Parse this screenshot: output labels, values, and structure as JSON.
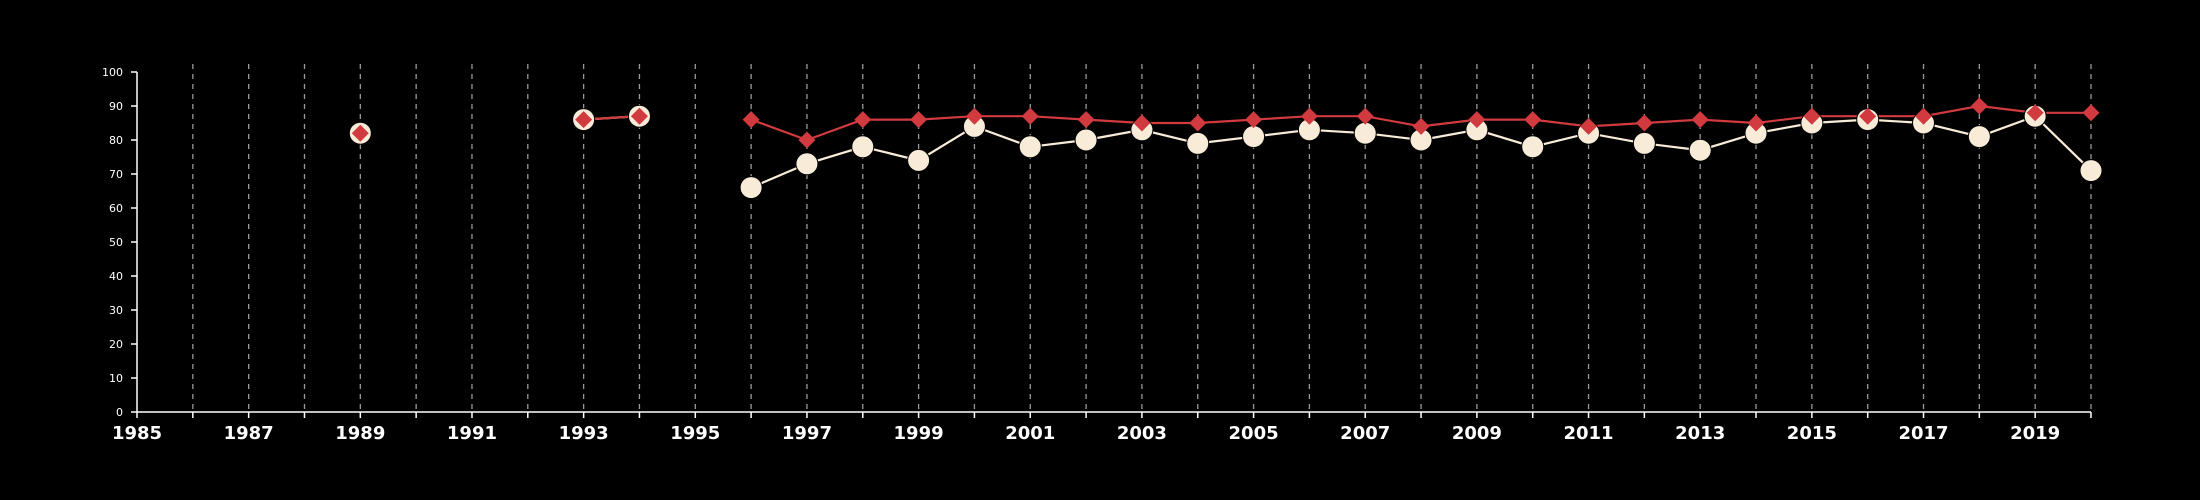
{
  "chart_data": {
    "type": "line",
    "title": "",
    "xlabel": "",
    "ylabel": "",
    "xlim": [
      1985,
      2020
    ],
    "ylim": [
      0,
      100
    ],
    "y_ticks": [
      0,
      10,
      20,
      30,
      40,
      50,
      60,
      70,
      80,
      90,
      100
    ],
    "x_ticks": [
      1985,
      1986,
      1987,
      1988,
      1989,
      1990,
      1991,
      1992,
      1993,
      1994,
      1995,
      1996,
      1997,
      1998,
      1999,
      2000,
      2001,
      2002,
      2003,
      2004,
      2005,
      2006,
      2007,
      2008,
      2009,
      2010,
      2011,
      2012,
      2013,
      2014,
      2015,
      2016,
      2017,
      2018,
      2019,
      2020
    ],
    "x_tick_labels": [
      "1985",
      "1987",
      "1989",
      "1991",
      "1993",
      "1995",
      "1997",
      "1999",
      "2001",
      "2003",
      "2005",
      "2007",
      "2009",
      "2011",
      "2013",
      "2015",
      "2017",
      "2019"
    ],
    "grid": "vertical dashed at each year",
    "legend": "none",
    "series": [
      {
        "color": "#d13a3f",
        "marker": "diamond",
        "points": [
          [
            1989,
            82
          ],
          [
            1993,
            86
          ],
          [
            1994,
            87
          ],
          [
            1996,
            86
          ],
          [
            1997,
            80
          ],
          [
            1998,
            86
          ],
          [
            1999,
            86
          ],
          [
            2000,
            87
          ],
          [
            2001,
            87
          ],
          [
            2002,
            86
          ],
          [
            2003,
            85
          ],
          [
            2004,
            85
          ],
          [
            2005,
            86
          ],
          [
            2006,
            87
          ],
          [
            2007,
            87
          ],
          [
            2008,
            84
          ],
          [
            2009,
            86
          ],
          [
            2010,
            86
          ],
          [
            2011,
            84
          ],
          [
            2012,
            85
          ],
          [
            2013,
            86
          ],
          [
            2014,
            85
          ],
          [
            2015,
            87
          ],
          [
            2016,
            87
          ],
          [
            2017,
            87
          ],
          [
            2018,
            90
          ],
          [
            2019,
            88
          ],
          [
            2020,
            88
          ]
        ]
      },
      {
        "color": "#f8ecd8",
        "marker": "circle",
        "points": [
          [
            1989,
            82
          ],
          [
            1993,
            86
          ],
          [
            1994,
            87
          ],
          [
            1996,
            66
          ],
          [
            1997,
            73
          ],
          [
            1998,
            78
          ],
          [
            1999,
            74
          ],
          [
            2000,
            84
          ],
          [
            2001,
            78
          ],
          [
            2002,
            80
          ],
          [
            2003,
            83
          ],
          [
            2004,
            79
          ],
          [
            2005,
            81
          ],
          [
            2006,
            83
          ],
          [
            2007,
            82
          ],
          [
            2008,
            80
          ],
          [
            2009,
            83
          ],
          [
            2010,
            78
          ],
          [
            2011,
            82
          ],
          [
            2012,
            79
          ],
          [
            2013,
            77
          ],
          [
            2014,
            82
          ],
          [
            2015,
            85
          ],
          [
            2016,
            86
          ],
          [
            2017,
            85
          ],
          [
            2018,
            81
          ],
          [
            2019,
            87
          ],
          [
            2020,
            71
          ]
        ]
      }
    ]
  },
  "colors": {
    "background": "#000000",
    "axis": "#ffffff",
    "grid": "#9a9a9a"
  }
}
